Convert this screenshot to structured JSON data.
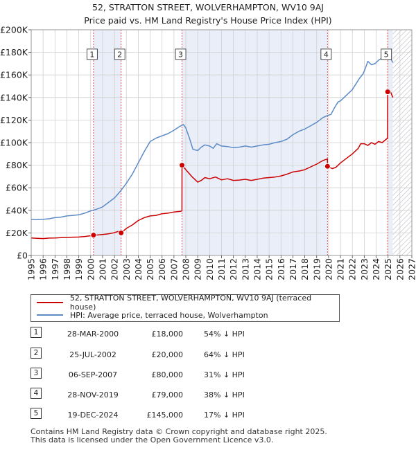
{
  "chart_data": {
    "type": "line",
    "title": "52, STRATTON STREET, WOLVERHAMPTON, WV10 9AJ",
    "subtitle": "Price paid vs. HM Land Registry's House Price Index (HPI)",
    "xlabel": "",
    "ylabel": "",
    "xlim": [
      1995,
      2027
    ],
    "ylim": [
      0,
      200000
    ],
    "y_ticks": [
      0,
      20000,
      40000,
      60000,
      80000,
      100000,
      120000,
      140000,
      160000,
      180000,
      200000
    ],
    "y_tick_labels": [
      "£0",
      "£20K",
      "£40K",
      "£60K",
      "£80K",
      "£100K",
      "£120K",
      "£140K",
      "£160K",
      "£180K",
      "£200K"
    ],
    "x_ticks": [
      1995,
      1996,
      1997,
      1998,
      1999,
      2000,
      2001,
      2002,
      2003,
      2004,
      2005,
      2006,
      2007,
      2008,
      2009,
      2010,
      2011,
      2012,
      2013,
      2014,
      2015,
      2016,
      2017,
      2018,
      2019,
      2020,
      2021,
      2022,
      2023,
      2024,
      2025,
      2026,
      2027
    ],
    "x_tick_labels": [
      "1995",
      "1996",
      "1997",
      "1998",
      "1999",
      "2000",
      "2001",
      "2002",
      "2003",
      "2004",
      "2005",
      "2006",
      "2007",
      "2008",
      "2009",
      "2010",
      "2011",
      "2012",
      "2013",
      "2014",
      "2015",
      "2016",
      "2017",
      "2018",
      "2019",
      "2020",
      "2021",
      "2022",
      "2023",
      "2024",
      "2025",
      "2026",
      "2027"
    ],
    "grid": true,
    "shaded_regions": [
      [
        2000.24,
        2002.56
      ],
      [
        2007.68,
        2019.91
      ],
      [
        2024.97,
        2025.4
      ]
    ],
    "forecast_hatch_from": 2025.4,
    "series": [
      {
        "name": "52, STRATTON STREET, WOLVERHAMPTON, WV10 9AJ (terraced house)",
        "color": "#cc0000",
        "x": [
          1995.0,
          1995.5,
          1996.0,
          1996.5,
          1997.0,
          1997.5,
          1998.0,
          1998.5,
          1999.0,
          1999.5,
          2000.0,
          2000.24,
          2000.5,
          2001.0,
          2001.5,
          2002.0,
          2002.3,
          2002.56,
          2003.0,
          2003.5,
          2004.0,
          2004.5,
          2005.0,
          2005.5,
          2006.0,
          2006.5,
          2007.0,
          2007.5,
          2007.67,
          2007.68,
          2008.0,
          2008.5,
          2009.0,
          2009.3,
          2009.6,
          2010.0,
          2010.5,
          2011.0,
          2011.5,
          2012.0,
          2012.5,
          2013.0,
          2013.5,
          2014.0,
          2014.5,
          2015.0,
          2015.5,
          2016.0,
          2016.5,
          2017.0,
          2017.5,
          2018.0,
          2018.5,
          2019.0,
          2019.5,
          2019.9,
          2019.91,
          2020.3,
          2020.6,
          2021.0,
          2021.5,
          2022.0,
          2022.5,
          2022.7,
          2023.0,
          2023.3,
          2023.6,
          2023.9,
          2024.2,
          2024.5,
          2024.96,
          2024.97,
          2025.1,
          2025.25,
          2025.4
        ],
        "values": [
          15500,
          15200,
          15000,
          15400,
          15500,
          15800,
          16000,
          16200,
          16300,
          16800,
          17400,
          18000,
          18100,
          18600,
          19200,
          20200,
          21300,
          20000,
          24000,
          27000,
          31000,
          33500,
          35000,
          35500,
          37000,
          37500,
          38500,
          39000,
          39500,
          80000,
          76000,
          70000,
          65000,
          66500,
          69000,
          68000,
          69500,
          67000,
          68000,
          66500,
          66800,
          67500,
          66500,
          67500,
          68500,
          69000,
          69500,
          70500,
          72000,
          74000,
          74800,
          76000,
          78500,
          81000,
          84000,
          85500,
          79000,
          77000,
          78000,
          82000,
          86000,
          90000,
          95000,
          99000,
          99000,
          97500,
          100000,
          98500,
          101000,
          100000,
          104000,
          145000,
          147000,
          144000,
          140000
        ]
      },
      {
        "name": "HPI: Average price, terraced house, Wolverhampton",
        "color": "#5b8ac6",
        "x": [
          1995.0,
          1995.5,
          1996.0,
          1996.5,
          1997.0,
          1997.5,
          1998.0,
          1998.5,
          1999.0,
          1999.5,
          2000.0,
          2000.5,
          2001.0,
          2001.5,
          2002.0,
          2002.5,
          2003.0,
          2003.5,
          2004.0,
          2004.5,
          2005.0,
          2005.5,
          2006.0,
          2006.5,
          2007.0,
          2007.5,
          2007.8,
          2008.0,
          2008.3,
          2008.6,
          2009.0,
          2009.3,
          2009.6,
          2010.0,
          2010.3,
          2010.6,
          2011.0,
          2011.5,
          2012.0,
          2012.5,
          2013.0,
          2013.5,
          2014.0,
          2014.5,
          2015.0,
          2015.5,
          2016.0,
          2016.5,
          2017.0,
          2017.5,
          2018.0,
          2018.5,
          2019.0,
          2019.5,
          2019.9,
          2020.2,
          2020.5,
          2020.8,
          2021.0,
          2021.3,
          2021.6,
          2022.0,
          2022.3,
          2022.6,
          2022.9,
          2023.1,
          2023.3,
          2023.6,
          2023.9,
          2024.2,
          2024.5,
          2024.8,
          2025.0,
          2025.2,
          2025.4
        ],
        "values": [
          32000,
          31800,
          32000,
          32500,
          33500,
          34000,
          35000,
          35500,
          36000,
          37500,
          39500,
          41000,
          43000,
          47000,
          51000,
          57000,
          64000,
          72000,
          82000,
          92000,
          101000,
          104000,
          106000,
          108000,
          111000,
          114500,
          116000,
          113000,
          104000,
          94000,
          93000,
          96000,
          98000,
          97000,
          95000,
          99000,
          97000,
          96500,
          95500,
          96000,
          97000,
          96000,
          97000,
          98000,
          98500,
          100000,
          101000,
          103000,
          107000,
          110000,
          112000,
          115000,
          118000,
          122000,
          124000,
          125000,
          131000,
          136000,
          137000,
          140000,
          143000,
          147000,
          152000,
          157000,
          161000,
          166000,
          172000,
          169000,
          170000,
          173000,
          175000,
          177000,
          178000,
          175000,
          171000
        ]
      }
    ],
    "sales": [
      {
        "id": "1",
        "x": 2000.24,
        "value": 18000
      },
      {
        "id": "2",
        "x": 2002.56,
        "value": 20000
      },
      {
        "id": "3",
        "x": 2007.68,
        "value": 80000
      },
      {
        "id": "4",
        "x": 2019.91,
        "value": 79000
      },
      {
        "id": "5",
        "x": 2024.97,
        "value": 145000
      }
    ],
    "legend_position": "below"
  },
  "legend": {
    "property_label": "52, STRATTON STREET, WOLVERHAMPTON, WV10 9AJ (terraced house)",
    "hpi_label": "HPI: Average price, terraced house, Wolverhampton"
  },
  "transactions": [
    {
      "num": "1",
      "date": "28-MAR-2000",
      "price": "£18,000",
      "hpi": "54% ↓ HPI"
    },
    {
      "num": "2",
      "date": "25-JUL-2002",
      "price": "£20,000",
      "hpi": "64% ↓ HPI"
    },
    {
      "num": "3",
      "date": "06-SEP-2007",
      "price": "£80,000",
      "hpi": "31% ↓ HPI"
    },
    {
      "num": "4",
      "date": "28-NOV-2019",
      "price": "£79,000",
      "hpi": "38% ↓ HPI"
    },
    {
      "num": "5",
      "date": "19-DEC-2024",
      "price": "£145,000",
      "hpi": "17% ↓ HPI"
    }
  ],
  "footer": {
    "line1": "Contains HM Land Registry data © Crown copyright and database right 2025.",
    "line2": "This data is licensed under the Open Government Licence v3.0."
  }
}
